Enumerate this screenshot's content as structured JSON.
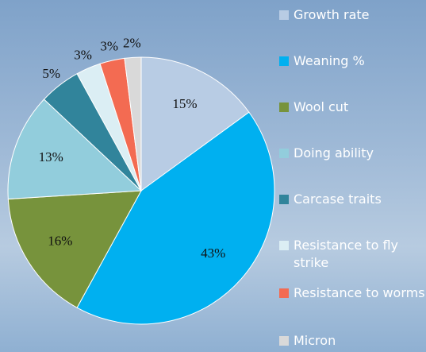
{
  "chart_data": {
    "type": "pie",
    "categories": [
      "Growth rate",
      "Weaning %",
      "Wool cut",
      "Doing ability",
      "Carcase traits",
      "Resistance to fly strike",
      "Resistance to worms",
      "Micron"
    ],
    "values": [
      15,
      43,
      16,
      13,
      5,
      3,
      3,
      2
    ],
    "value_labels": [
      "15%",
      "43%",
      "16%",
      "13%",
      "5%",
      "3%",
      "3%",
      "2%"
    ],
    "colors": [
      "#b8cce4",
      "#00b0f0",
      "#77933c",
      "#92cddc",
      "#31849b",
      "#dbeef4",
      "#f36b52",
      "#d9d9d9"
    ],
    "legend": "right"
  }
}
